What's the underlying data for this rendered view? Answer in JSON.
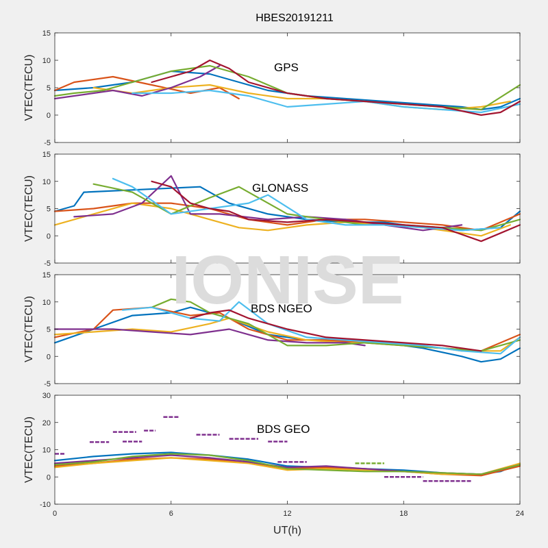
{
  "title": "HBES20191211",
  "watermark": "IONISE",
  "colors": [
    "#0072BD",
    "#D95319",
    "#EDB120",
    "#7E2F8E",
    "#77AC30",
    "#4DBEEE",
    "#A2142F"
  ],
  "chart_data": [
    {
      "type": "line",
      "label": "GPS",
      "xlabel": "",
      "ylabel": "VTEC(TECU)",
      "xlim": [
        0,
        24
      ],
      "ylim": [
        -5,
        15
      ],
      "xticks": [
        0,
        6,
        12,
        18,
        24
      ],
      "yticks": [
        -5,
        0,
        5,
        10,
        15
      ],
      "show_xtick_labels": false,
      "series": [
        {
          "x": [
            0,
            2,
            4,
            6,
            8,
            9.5,
            11,
            13,
            15,
            17,
            19,
            21,
            22,
            23,
            24
          ],
          "y": [
            4.5,
            5,
            6,
            8,
            7.5,
            6,
            4.5,
            3.5,
            3,
            2.5,
            2,
            1.5,
            1,
            1.5,
            3
          ]
        },
        {
          "x": [
            0,
            1,
            3,
            5,
            7,
            8.5,
            9.5
          ],
          "y": [
            4.5,
            6,
            7,
            5.5,
            4,
            5,
            3
          ]
        },
        {
          "x": [
            2,
            4,
            6,
            8,
            10,
            12,
            14,
            16,
            18,
            20,
            22,
            23.5
          ],
          "y": [
            5,
            4,
            5,
            5.5,
            4,
            3,
            3,
            2.5,
            1.5,
            1,
            1.5,
            2.5
          ]
        },
        {
          "x": [
            0,
            1,
            3,
            4.5,
            6,
            7.5,
            8.5
          ],
          "y": [
            3,
            3.5,
            4.5,
            3.5,
            5,
            7,
            9
          ]
        },
        {
          "x": [
            0,
            1,
            2.5,
            4,
            6,
            8,
            10,
            12,
            14,
            16,
            18,
            20,
            22,
            24
          ],
          "y": [
            3.5,
            4,
            4.5,
            6,
            8,
            9,
            7,
            4,
            3,
            2.5,
            2,
            1.5,
            1,
            5.5
          ]
        },
        {
          "x": [
            4,
            6,
            8,
            10,
            12,
            14,
            16,
            18,
            20,
            22,
            24
          ],
          "y": [
            4,
            4,
            4.5,
            3.5,
            1.5,
            2,
            2.5,
            1.5,
            1,
            0.5,
            2
          ]
        },
        {
          "x": [
            5,
            7,
            8,
            9,
            10,
            12,
            14,
            16,
            18,
            20,
            22,
            23,
            24
          ],
          "y": [
            6,
            8,
            10,
            8.5,
            6,
            4,
            3,
            2.5,
            2,
            1.5,
            0,
            0.5,
            2.5
          ]
        }
      ]
    },
    {
      "type": "line",
      "label": "GLONASS",
      "xlabel": "",
      "ylabel": "VTEC(TECU)",
      "xlim": [
        0,
        24
      ],
      "ylim": [
        -5,
        15
      ],
      "xticks": [
        0,
        6,
        12,
        18,
        24
      ],
      "yticks": [
        -5,
        0,
        5,
        10,
        15
      ],
      "show_xtick_labels": false,
      "series": [
        {
          "x": [
            0,
            1,
            1.5,
            7.5,
            9,
            11,
            13,
            15,
            17,
            19,
            21,
            23,
            24
          ],
          "y": [
            4.5,
            5.5,
            8,
            9,
            6,
            4,
            3,
            2.5,
            2.5,
            1.5,
            1,
            1.5,
            4.5
          ]
        },
        {
          "x": [
            0,
            2,
            4,
            6,
            8,
            10,
            12,
            14,
            16,
            18,
            20,
            22,
            24
          ],
          "y": [
            4.5,
            5,
            6,
            6,
            5,
            3,
            2,
            3,
            3,
            2.5,
            2,
            1,
            4
          ]
        },
        {
          "x": [
            0,
            2,
            4,
            6,
            8,
            9.5,
            11,
            13,
            15,
            17,
            19,
            22,
            23.5
          ],
          "y": [
            2,
            4,
            6,
            5,
            3,
            1.5,
            1,
            2,
            2.5,
            2,
            1.5,
            0,
            2
          ]
        },
        {
          "x": [
            1,
            3,
            4.5,
            6,
            7,
            8.5,
            11,
            13,
            15,
            17,
            19,
            21
          ],
          "y": [
            3.5,
            4,
            6,
            11,
            4,
            4,
            3,
            3.5,
            3,
            2,
            1,
            2
          ]
        },
        {
          "x": [
            2,
            4,
            6,
            8,
            9.5,
            12,
            14,
            16,
            18,
            20,
            22,
            24
          ],
          "y": [
            9.5,
            8,
            4,
            7,
            9,
            4,
            3,
            2,
            2,
            1.5,
            1,
            3
          ]
        },
        {
          "x": [
            3,
            4,
            6,
            8,
            10,
            11,
            13,
            15,
            17,
            19,
            21,
            23
          ],
          "y": [
            10.5,
            9,
            4,
            5,
            6,
            7.5,
            3,
            2,
            2,
            1.5,
            1,
            1.5
          ]
        },
        {
          "x": [
            5,
            6,
            7,
            8,
            9,
            10,
            12,
            14,
            16,
            18,
            20,
            22,
            23,
            24
          ],
          "y": [
            10,
            9,
            6,
            5,
            4.5,
            3,
            2.5,
            3,
            2.5,
            2,
            1.5,
            -1,
            0.5,
            2
          ]
        }
      ]
    },
    {
      "type": "line",
      "label": "BDS NGEO",
      "xlabel": "",
      "ylabel": "VTEC(TECU)",
      "xlim": [
        0,
        24
      ],
      "ylim": [
        -5,
        15
      ],
      "xticks": [
        0,
        6,
        12,
        18,
        24
      ],
      "yticks": [
        -5,
        0,
        5,
        10,
        15
      ],
      "show_xtick_labels": false,
      "series": [
        {
          "x": [
            0,
            2,
            4,
            6,
            7,
            9,
            11,
            13,
            15,
            17,
            19,
            21,
            22,
            23,
            24
          ],
          "y": [
            2.5,
            5,
            7.5,
            8,
            9,
            7,
            4,
            3,
            3,
            2.5,
            1.5,
            0,
            -1,
            -0.5,
            1.5
          ]
        },
        {
          "x": [
            0,
            2,
            3,
            5,
            7,
            8.5,
            10,
            12,
            14,
            16,
            18,
            20,
            22,
            24
          ],
          "y": [
            3.5,
            5,
            8.5,
            9,
            7.5,
            8,
            5,
            3,
            3,
            2.5,
            2,
            1.5,
            1,
            4
          ]
        },
        {
          "x": [
            0,
            2,
            4,
            6,
            8,
            9,
            11,
            13,
            15,
            17,
            19,
            21,
            23,
            24
          ],
          "y": [
            4,
            4.5,
            5,
            4.5,
            6,
            7,
            4.5,
            3,
            2.5,
            2.5,
            2,
            1,
            1,
            3.5
          ]
        },
        {
          "x": [
            0,
            1,
            3,
            5,
            7,
            9,
            11,
            13,
            15,
            16
          ],
          "y": [
            5,
            5,
            5,
            4.5,
            4,
            5,
            3,
            2.5,
            2.5,
            2
          ]
        },
        {
          "x": [
            5,
            6,
            7,
            8,
            9,
            10,
            12,
            14,
            16,
            18,
            20,
            22,
            24
          ],
          "y": [
            9,
            10.5,
            10,
            8,
            7,
            6,
            2,
            2,
            2.5,
            2,
            1.5,
            1,
            3
          ]
        },
        {
          "x": [
            3.5,
            5,
            7,
            8.5,
            9.5,
            11,
            13,
            15,
            17,
            19,
            21,
            23,
            24
          ],
          "y": [
            8.5,
            9,
            7,
            6.5,
            10,
            6,
            3.5,
            3,
            2.5,
            2,
            1,
            0.5,
            3.5
          ]
        },
        {
          "x": [
            7,
            8,
            9,
            10,
            12,
            14,
            16,
            18,
            20,
            22
          ],
          "y": [
            7,
            8,
            8.5,
            7,
            5,
            3.5,
            3,
            2.5,
            2,
            1
          ]
        }
      ]
    },
    {
      "type": "line",
      "label": "BDS GEO",
      "xlabel": "UT(h)",
      "ylabel": "VTEC(TECU)",
      "xlim": [
        0,
        24
      ],
      "ylim": [
        -10,
        30
      ],
      "xticks": [
        0,
        6,
        12,
        18,
        24
      ],
      "yticks": [
        -10,
        0,
        10,
        20,
        30
      ],
      "show_xtick_labels": true,
      "series": [
        {
          "x": [
            0,
            2,
            4,
            6,
            8,
            10,
            12,
            14,
            16,
            18,
            20,
            22,
            23,
            24
          ],
          "y": [
            6,
            7.5,
            8.5,
            9,
            8,
            6.5,
            4,
            3.5,
            3,
            2.5,
            1.5,
            1,
            2,
            5
          ]
        },
        {
          "x": [
            0,
            2,
            4,
            6,
            8,
            10,
            12,
            14,
            16,
            18,
            20,
            22,
            24
          ],
          "y": [
            4,
            5,
            6.5,
            7,
            6.5,
            5.5,
            3,
            3.5,
            3,
            2,
            1,
            0.5,
            4
          ]
        },
        {
          "x": [
            0,
            2,
            4,
            6,
            8,
            10,
            12,
            14,
            16,
            18,
            20,
            22,
            24
          ],
          "y": [
            3.5,
            5,
            6,
            7,
            6,
            5,
            2.5,
            3,
            2.5,
            2,
            1,
            1,
            5
          ]
        },
        {
          "x": [
            0,
            2,
            4,
            6,
            8,
            10,
            12,
            14,
            16,
            18,
            20,
            22,
            24
          ],
          "y": [
            5,
            6,
            7,
            8,
            7,
            5.5,
            3.5,
            4,
            3,
            2,
            1.5,
            1,
            4.5
          ]
        },
        {
          "x": [
            0,
            2,
            4,
            6,
            8,
            10,
            12,
            14,
            16,
            18,
            20,
            22,
            24
          ],
          "y": [
            4.5,
            5.5,
            7.5,
            8.5,
            8,
            6,
            3,
            2.5,
            2,
            2,
            1.5,
            1,
            4.5
          ]
        }
      ],
      "segments": [
        {
          "x": [
            0,
            0.5
          ],
          "y": [
            8.5,
            8.5
          ],
          "c": 3
        },
        {
          "x": [
            1.8,
            2.8
          ],
          "y": [
            12.8,
            12.8
          ],
          "c": 3
        },
        {
          "x": [
            3.5,
            4.5
          ],
          "y": [
            13,
            13
          ],
          "c": 3
        },
        {
          "x": [
            4.6,
            5.2
          ],
          "y": [
            17,
            17
          ],
          "c": 3
        },
        {
          "x": [
            3,
            4.2
          ],
          "y": [
            16.5,
            16.5
          ],
          "c": 3
        },
        {
          "x": [
            5.6,
            6.4
          ],
          "y": [
            22,
            22
          ],
          "c": 3
        },
        {
          "x": [
            7.3,
            8.5
          ],
          "y": [
            15.5,
            15.5
          ],
          "c": 3
        },
        {
          "x": [
            9,
            10.5
          ],
          "y": [
            14,
            14
          ],
          "c": 3
        },
        {
          "x": [
            11,
            12
          ],
          "y": [
            13,
            13
          ],
          "c": 3
        },
        {
          "x": [
            15.5,
            17
          ],
          "y": [
            5,
            5
          ],
          "c": 4
        },
        {
          "x": [
            19,
            21.5
          ],
          "y": [
            -1.5,
            -1.5
          ],
          "c": 3
        },
        {
          "x": [
            17,
            19
          ],
          "y": [
            0,
            0
          ],
          "c": 3
        },
        {
          "x": [
            11.5,
            13
          ],
          "y": [
            5.5,
            5.5
          ],
          "c": 3
        }
      ]
    }
  ]
}
